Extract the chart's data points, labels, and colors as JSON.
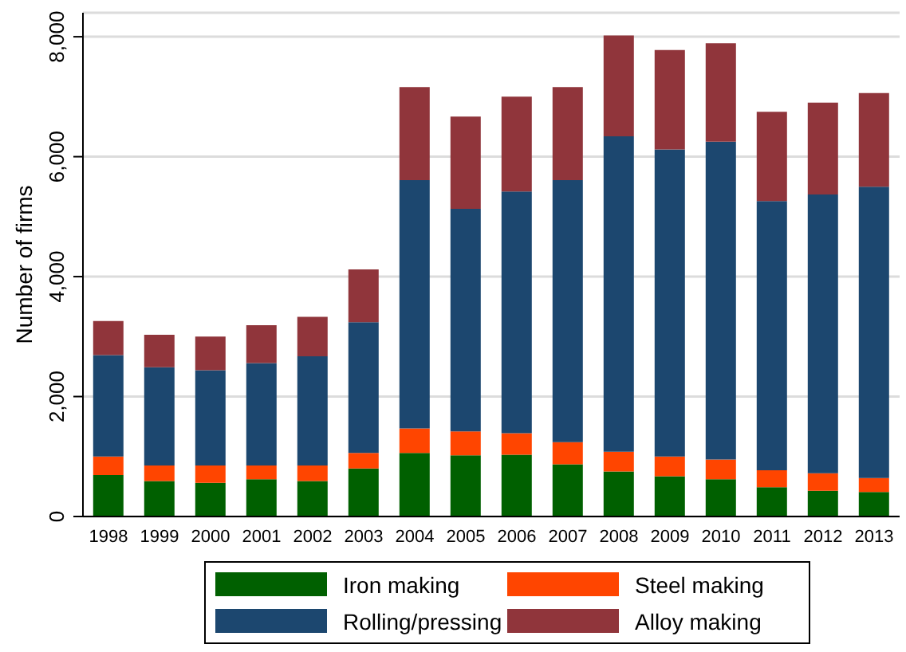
{
  "chart_data": {
    "type": "bar",
    "stacked": true,
    "ylabel": "Number of firms",
    "categories": [
      "1998",
      "1999",
      "2000",
      "2001",
      "2002",
      "2003",
      "2004",
      "2005",
      "2006",
      "2007",
      "2008",
      "2009",
      "2010",
      "2011",
      "2012",
      "2013"
    ],
    "series": [
      {
        "name": "Iron making",
        "color": "#006000",
        "values": [
          690,
          590,
          560,
          620,
          590,
          800,
          1060,
          1020,
          1030,
          870,
          750,
          670,
          620,
          490,
          430,
          410
        ]
      },
      {
        "name": "Steel making",
        "color": "#ff4500",
        "values": [
          310,
          260,
          290,
          230,
          260,
          260,
          410,
          400,
          360,
          370,
          330,
          330,
          330,
          280,
          290,
          230
        ]
      },
      {
        "name": "Rolling/pressing",
        "color": "#1c476f",
        "values": [
          1690,
          1640,
          1590,
          1710,
          1820,
          2180,
          4140,
          3710,
          4030,
          4370,
          5260,
          5120,
          5300,
          4490,
          4650,
          4860
        ]
      },
      {
        "name": "Alloy making",
        "color": "#90353b",
        "values": [
          570,
          540,
          560,
          630,
          660,
          880,
          1550,
          1540,
          1580,
          1550,
          1680,
          1660,
          1640,
          1490,
          1530,
          1560
        ]
      }
    ],
    "ylim": [
      0,
      8400
    ],
    "yticks": [
      {
        "value": 0,
        "label": "0"
      },
      {
        "value": 2000,
        "label": "2,000"
      },
      {
        "value": 4000,
        "label": "4,000"
      },
      {
        "value": 6000,
        "label": "6,000"
      },
      {
        "value": 8000,
        "label": "8,000"
      }
    ],
    "grid": "y",
    "legend": "bottom"
  }
}
